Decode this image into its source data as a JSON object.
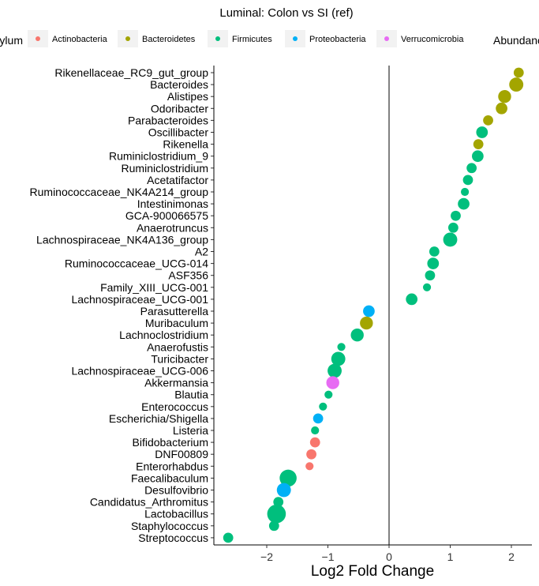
{
  "chart_data": {
    "type": "scatter",
    "title": "Luminal: Colon vs SI (ref)",
    "xlabel": "Log2 Fold Change",
    "ylabel": "",
    "xlim": [
      -2.85,
      2.35
    ],
    "xticks": [
      -2,
      -1,
      0,
      1,
      2
    ],
    "reference_line_x": 0,
    "legend": {
      "position": "top",
      "color_title": "Phylum",
      "size_title": "Abundance",
      "entries": [
        {
          "name": "Actinobacteria",
          "color": "#F8766D"
        },
        {
          "name": "Bacteroidetes",
          "color": "#A3A500"
        },
        {
          "name": "Firmicutes",
          "color": "#00BF7D"
        },
        {
          "name": "Proteobacteria",
          "color": "#00B0F6"
        },
        {
          "name": "Verrucomicrobia",
          "color": "#E76BF3"
        }
      ]
    },
    "points": [
      {
        "genus": "Rikenellaceae_RC9_gut_group",
        "lfc": 2.12,
        "phylum": "Bacteroidetes",
        "size": 2
      },
      {
        "genus": "Bacteroides",
        "lfc": 2.08,
        "phylum": "Bacteroidetes",
        "size": 5
      },
      {
        "genus": "Alistipes",
        "lfc": 1.89,
        "phylum": "Bacteroidetes",
        "size": 4
      },
      {
        "genus": "Odoribacter",
        "lfc": 1.84,
        "phylum": "Bacteroidetes",
        "size": 3
      },
      {
        "genus": "Parabacteroides",
        "lfc": 1.62,
        "phylum": "Bacteroidetes",
        "size": 2
      },
      {
        "genus": "Oscillibacter",
        "lfc": 1.52,
        "phylum": "Firmicutes",
        "size": 3
      },
      {
        "genus": "Rikenella",
        "lfc": 1.46,
        "phylum": "Bacteroidetes",
        "size": 2
      },
      {
        "genus": "Ruminiclostridium_9",
        "lfc": 1.45,
        "phylum": "Firmicutes",
        "size": 3
      },
      {
        "genus": "Ruminiclostridium",
        "lfc": 1.35,
        "phylum": "Firmicutes",
        "size": 2
      },
      {
        "genus": "Acetatifactor",
        "lfc": 1.29,
        "phylum": "Firmicutes",
        "size": 2
      },
      {
        "genus": "Ruminococcaceae_NK4A214_group",
        "lfc": 1.24,
        "phylum": "Firmicutes",
        "size": 1
      },
      {
        "genus": "Intestinimonas",
        "lfc": 1.22,
        "phylum": "Firmicutes",
        "size": 3
      },
      {
        "genus": "GCA-900066575",
        "lfc": 1.09,
        "phylum": "Firmicutes",
        "size": 2
      },
      {
        "genus": "Anaerotruncus",
        "lfc": 1.05,
        "phylum": "Firmicutes",
        "size": 2
      },
      {
        "genus": "Lachnospiraceae_NK4A136_group",
        "lfc": 1.0,
        "phylum": "Firmicutes",
        "size": 5
      },
      {
        "genus": "A2",
        "lfc": 0.74,
        "phylum": "Firmicutes",
        "size": 2
      },
      {
        "genus": "Ruminococcaceae_UCG-014",
        "lfc": 0.72,
        "phylum": "Firmicutes",
        "size": 3
      },
      {
        "genus": "ASF356",
        "lfc": 0.67,
        "phylum": "Firmicutes",
        "size": 2
      },
      {
        "genus": "Family_XIII_UCG-001",
        "lfc": 0.62,
        "phylum": "Firmicutes",
        "size": 1
      },
      {
        "genus": "Lachnospiraceae_UCG-001",
        "lfc": 0.37,
        "phylum": "Firmicutes",
        "size": 3
      },
      {
        "genus": "Parasutterella",
        "lfc": -0.33,
        "phylum": "Proteobacteria",
        "size": 3
      },
      {
        "genus": "Muribaculum",
        "lfc": -0.37,
        "phylum": "Bacteroidetes",
        "size": 4
      },
      {
        "genus": "Lachnoclostridium",
        "lfc": -0.52,
        "phylum": "Firmicutes",
        "size": 4
      },
      {
        "genus": "Anaerofustis",
        "lfc": -0.78,
        "phylum": "Firmicutes",
        "size": 1
      },
      {
        "genus": "Turicibacter",
        "lfc": -0.83,
        "phylum": "Firmicutes",
        "size": 5
      },
      {
        "genus": "Lachnospiraceae_UCG-006",
        "lfc": -0.89,
        "phylum": "Firmicutes",
        "size": 5
      },
      {
        "genus": "Akkermansia",
        "lfc": -0.92,
        "phylum": "Verrucomicrobia",
        "size": 4
      },
      {
        "genus": "Blautia",
        "lfc": -0.99,
        "phylum": "Firmicutes",
        "size": 1
      },
      {
        "genus": "Enterococcus",
        "lfc": -1.08,
        "phylum": "Firmicutes",
        "size": 1
      },
      {
        "genus": "Escherichia/Shigella",
        "lfc": -1.16,
        "phylum": "Proteobacteria",
        "size": 2
      },
      {
        "genus": "Listeria",
        "lfc": -1.21,
        "phylum": "Firmicutes",
        "size": 1
      },
      {
        "genus": "Bifidobacterium",
        "lfc": -1.21,
        "phylum": "Actinobacteria",
        "size": 2
      },
      {
        "genus": "DNF00809",
        "lfc": -1.27,
        "phylum": "Actinobacteria",
        "size": 2
      },
      {
        "genus": "Enterorhabdus",
        "lfc": -1.3,
        "phylum": "Actinobacteria",
        "size": 1
      },
      {
        "genus": "Faecalibaculum",
        "lfc": -1.65,
        "phylum": "Firmicutes",
        "size": 8
      },
      {
        "genus": "Desulfovibrio",
        "lfc": -1.72,
        "phylum": "Proteobacteria",
        "size": 5
      },
      {
        "genus": "Candidatus_Arthromitus",
        "lfc": -1.81,
        "phylum": "Firmicutes",
        "size": 2
      },
      {
        "genus": "Lactobacillus",
        "lfc": -1.84,
        "phylum": "Firmicutes",
        "size": 10
      },
      {
        "genus": "Staphylococcus",
        "lfc": -1.88,
        "phylum": "Firmicutes",
        "size": 2
      },
      {
        "genus": "Streptococcus",
        "lfc": -2.63,
        "phylum": "Firmicutes",
        "size": 2
      }
    ]
  }
}
